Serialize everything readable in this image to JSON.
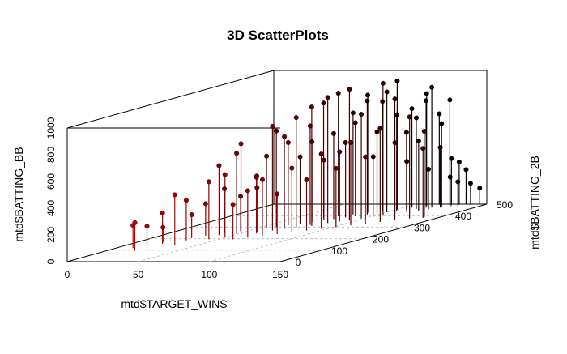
{
  "chart_data": {
    "type": "scatter",
    "title": "3D ScatterPlots",
    "xlabel": "mtd$TARGET_WINS",
    "ylabel": "mtd$BATTING_2B",
    "zlabel": "mtd$BATTING_BB",
    "xlim": [
      0,
      150
    ],
    "ylim": [
      0,
      500
    ],
    "zlim": [
      0,
      1000
    ],
    "x_ticks": [
      "0",
      "50",
      "100",
      "150"
    ],
    "y_ticks": [
      "0",
      "100",
      "200",
      "300",
      "400",
      "500"
    ],
    "z_ticks": [
      "0",
      "200",
      "400",
      "600",
      "800",
      "1000"
    ],
    "grid": true,
    "point_type": "h",
    "color_gradient": [
      "#ff0000",
      "#000000"
    ],
    "points": [
      [
        12,
        118,
        170
      ],
      [
        14,
        145,
        140
      ],
      [
        18,
        170,
        110
      ],
      [
        20,
        95,
        210
      ],
      [
        22,
        155,
        230
      ],
      [
        28,
        205,
        175
      ],
      [
        30,
        185,
        300
      ],
      [
        32,
        225,
        240
      ],
      [
        35,
        140,
        380
      ],
      [
        38,
        250,
        330
      ],
      [
        40,
        230,
        520
      ],
      [
        43,
        195,
        430
      ],
      [
        45,
        265,
        260
      ],
      [
        48,
        245,
        600
      ],
      [
        50,
        210,
        470
      ],
      [
        52,
        280,
        400
      ],
      [
        54,
        235,
        680
      ],
      [
        56,
        290,
        540
      ],
      [
        58,
        260,
        330
      ],
      [
        60,
        300,
        720
      ],
      [
        62,
        245,
        420
      ],
      [
        64,
        315,
        620
      ],
      [
        66,
        270,
        780
      ],
      [
        68,
        330,
        500
      ],
      [
        70,
        285,
        690
      ],
      [
        72,
        345,
        600
      ],
      [
        74,
        300,
        820
      ],
      [
        76,
        360,
        450
      ],
      [
        78,
        320,
        740
      ],
      [
        80,
        370,
        640
      ],
      [
        82,
        310,
        890
      ],
      [
        84,
        385,
        560
      ],
      [
        86,
        335,
        940
      ],
      [
        88,
        395,
        700
      ],
      [
        90,
        350,
        520
      ],
      [
        92,
        410,
        850
      ],
      [
        94,
        360,
        980
      ],
      [
        96,
        420,
        610
      ],
      [
        98,
        375,
        780
      ],
      [
        100,
        430,
        900
      ],
      [
        102,
        390,
        450
      ],
      [
        104,
        440,
        720
      ],
      [
        106,
        400,
        990
      ],
      [
        108,
        450,
        580
      ],
      [
        110,
        415,
        860
      ],
      [
        112,
        460,
        680
      ],
      [
        114,
        430,
        380
      ],
      [
        116,
        470,
        800
      ],
      [
        118,
        445,
        520
      ],
      [
        120,
        470,
        900
      ],
      [
        122,
        455,
        300
      ],
      [
        124,
        480,
        620
      ],
      [
        126,
        470,
        450
      ],
      [
        128,
        490,
        350
      ],
      [
        130,
        480,
        220
      ],
      [
        132,
        495,
        320
      ],
      [
        134,
        485,
        180
      ],
      [
        136,
        498,
        260
      ],
      [
        140,
        495,
        160
      ],
      [
        145,
        500,
        120
      ],
      [
        60,
        195,
        260
      ],
      [
        66,
        210,
        350
      ],
      [
        72,
        225,
        420
      ],
      [
        78,
        240,
        300
      ],
      [
        84,
        255,
        480
      ],
      [
        90,
        270,
        380
      ],
      [
        96,
        285,
        560
      ],
      [
        102,
        300,
        440
      ],
      [
        108,
        315,
        620
      ],
      [
        114,
        330,
        500
      ],
      [
        120,
        345,
        700
      ],
      [
        126,
        360,
        580
      ],
      [
        132,
        375,
        760
      ],
      [
        138,
        390,
        640
      ],
      [
        140,
        380,
        520
      ],
      [
        70,
        380,
        860
      ],
      [
        76,
        395,
        920
      ],
      [
        82,
        410,
        760
      ],
      [
        88,
        425,
        880
      ],
      [
        94,
        440,
        820
      ],
      [
        100,
        455,
        960
      ],
      [
        106,
        470,
        740
      ],
      [
        112,
        485,
        840
      ],
      [
        118,
        495,
        680
      ],
      [
        124,
        500,
        780
      ]
    ]
  }
}
